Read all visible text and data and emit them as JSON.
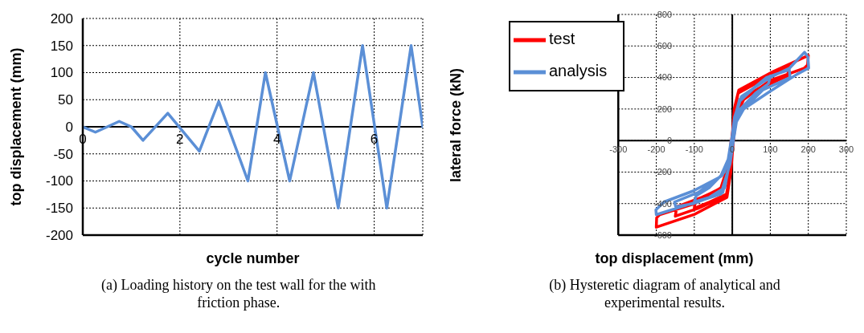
{
  "chart_data": [
    {
      "type": "line",
      "xlabel": "cycle number",
      "ylabel": "top displacement (mm)",
      "x": [
        0,
        0.26,
        0.75,
        1.0,
        1.24,
        1.75,
        2.4,
        2.8,
        3.4,
        3.76,
        4.26,
        4.75,
        5.26,
        5.76,
        6.26,
        6.76,
        7
      ],
      "series": [
        {
          "color": "#5b8fd6",
          "values": [
            0,
            -10,
            10,
            0,
            -25,
            25,
            -45,
            47,
            -100,
            100,
            -100,
            100,
            -150,
            150,
            -150,
            150,
            0
          ]
        }
      ],
      "xlim": [
        0,
        7
      ],
      "xticks": [
        0,
        2,
        4,
        6
      ],
      "ylim": [
        -200,
        200
      ],
      "yticks": [
        -200,
        -150,
        -100,
        -50,
        0,
        50,
        100,
        150,
        200
      ],
      "grid": true,
      "legend": false,
      "marker": "none",
      "line_style": "solid",
      "annotations": [
        "(a) Loading history on the test wall for the with friction phase."
      ]
    },
    {
      "type": "line",
      "xlabel": "top displacement (mm)",
      "ylabel": "lateral force (kN)",
      "series": [
        {
          "name": "test",
          "color": "#ff0000",
          "x": [
            0,
            6,
            15,
            60,
            100,
            97,
            62,
            20,
            8,
            1,
            -6,
            -15,
            -60,
            -100,
            -97,
            -61,
            -20,
            -7,
            -1,
            5,
            16,
            80,
            150,
            145,
            81,
            25,
            9,
            2,
            -5,
            -16,
            -90,
            -150,
            -146,
            -80,
            -25,
            -9,
            -2,
            7,
            17,
            101,
            200,
            198,
            190,
            99,
            30,
            10,
            3,
            -4,
            -14,
            -101,
            -200,
            -199,
            -191,
            -99,
            -30,
            -10,
            -3
          ],
          "values": [
            0,
            200,
            300,
            360,
            425,
            370,
            320,
            260,
            150,
            0,
            -200,
            -340,
            -390,
            -430,
            -380,
            -340,
            -290,
            -150,
            0,
            200,
            310,
            400,
            470,
            410,
            340,
            260,
            150,
            0,
            -200,
            -350,
            -430,
            -480,
            -420,
            -360,
            -300,
            -150,
            0,
            200,
            320,
            430,
            540,
            480,
            460,
            380,
            260,
            150,
            0,
            -200,
            -360,
            -470,
            -550,
            -490,
            -470,
            -400,
            -300,
            -150,
            0
          ]
        },
        {
          "name": "analysis",
          "color": "#5b8fd6",
          "x": [
            0,
            8,
            20,
            60,
            100,
            95,
            61,
            21,
            9,
            1,
            -8,
            -20,
            -60,
            -100,
            -95,
            -61,
            -21,
            -9,
            -1,
            7,
            19,
            90,
            150,
            152,
            80,
            22,
            10,
            2,
            -7,
            -25,
            -102,
            -149,
            -152,
            -90,
            -26,
            -10,
            -2,
            6,
            24,
            99,
            151,
            190,
            199,
            201,
            170,
            98,
            30,
            11,
            3,
            -6,
            -30,
            -120,
            -200,
            -201,
            -180,
            -103,
            -31,
            -11,
            -3
          ],
          "values": [
            0,
            150,
            250,
            340,
            410,
            360,
            300,
            200,
            120,
            0,
            -150,
            -300,
            -360,
            -390,
            -350,
            -300,
            -200,
            -120,
            0,
            150,
            260,
            400,
            450,
            400,
            320,
            180,
            120,
            0,
            -150,
            -330,
            -400,
            -420,
            -390,
            -330,
            -220,
            -120,
            0,
            150,
            280,
            400,
            460,
            560,
            530,
            460,
            420,
            310,
            200,
            120,
            0,
            -150,
            -340,
            -410,
            -470,
            -440,
            -390,
            -320,
            -230,
            -120,
            0
          ]
        }
      ],
      "xlim": [
        -300,
        300
      ],
      "xticks": [
        -300,
        -200,
        -100,
        0,
        100,
        200,
        300
      ],
      "ylim": [
        -600,
        800
      ],
      "yticks": [
        -600,
        -400,
        -200,
        0,
        200,
        400,
        600,
        800
      ],
      "grid": true,
      "legend": "top left",
      "marker": "none",
      "line_style": "solid",
      "annotations": [
        "(b) Hysteretic diagram of analytical and experimental results."
      ]
    }
  ]
}
